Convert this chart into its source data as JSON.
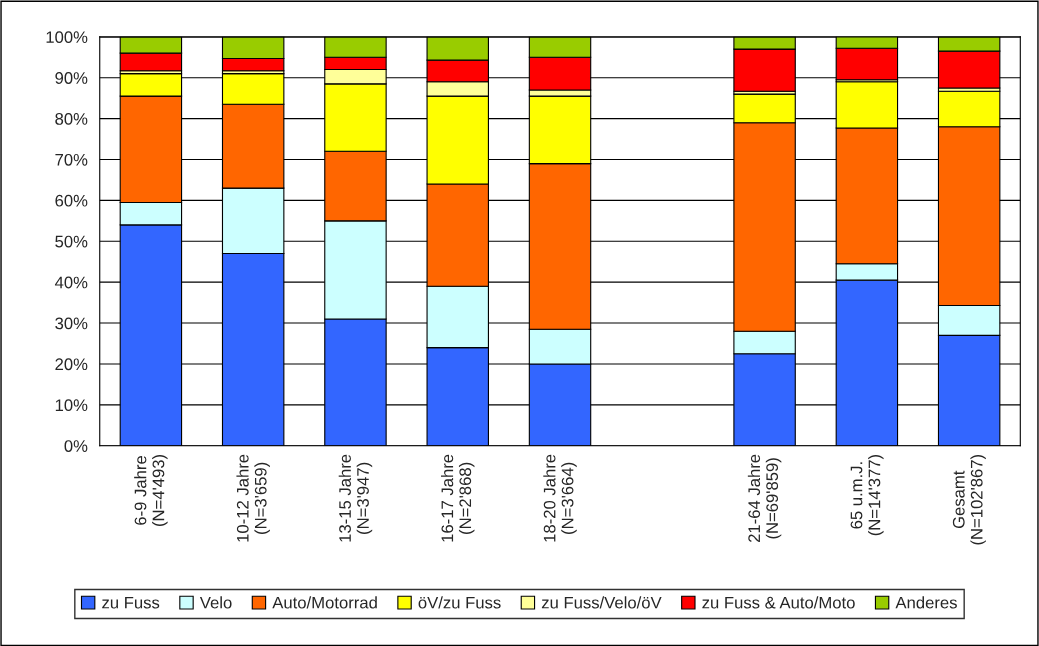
{
  "chart_data": {
    "type": "bar",
    "stacked": true,
    "categories": [
      "6-9 Jahre\n(N=4'493)",
      "10-12 Jahre\n(N=3'659)",
      "13-15 Jahre\n(N=3'947)",
      "16-17 Jahre\n(N=2'868)",
      "18-20 Jahre\n(N=3'664)",
      null,
      "21-64 Jahre\n(N=69'859)",
      "65 u.m.J.\n(N=14'377)",
      "Gesamt\n(N=102'867)"
    ],
    "series": [
      {
        "name": "zu Fuss",
        "color": "#3366ff",
        "values": [
          54,
          47,
          31,
          24,
          20,
          null,
          22.5,
          40.5,
          27
        ]
      },
      {
        "name": "Velo",
        "color": "#ccffff",
        "values": [
          5.5,
          16,
          24,
          15,
          8.5,
          null,
          5.5,
          4,
          7.3
        ]
      },
      {
        "name": "Auto/Motorrad",
        "color": "#ff6600",
        "values": [
          26,
          20.5,
          17,
          25,
          40.5,
          null,
          51,
          33.2,
          43.7
        ]
      },
      {
        "name": "öV/zu Fuss",
        "color": "#ffff00",
        "values": [
          5.5,
          7.5,
          16.5,
          21.5,
          16.5,
          null,
          7,
          11.3,
          8.7
        ]
      },
      {
        "name": "zu Fuss/Velo/öV",
        "color": "#ffff99",
        "values": [
          0.7,
          0.7,
          3.5,
          3.5,
          1.5,
          null,
          0.7,
          0.5,
          0.8
        ]
      },
      {
        "name": "zu Fuss & Auto/Moto",
        "color": "#ff0000",
        "values": [
          4.3,
          3,
          3,
          5.3,
          8,
          null,
          10.3,
          7.7,
          9
        ]
      },
      {
        "name": "Anderes",
        "color": "#99cc00",
        "values": [
          4,
          5.3,
          5,
          5.7,
          5,
          null,
          3,
          3,
          3.5
        ]
      }
    ],
    "ylim": [
      0,
      100
    ],
    "yticks": [
      {
        "value": 0,
        "label": "0%"
      },
      {
        "value": 10,
        "label": "10%"
      },
      {
        "value": 20,
        "label": "20%"
      },
      {
        "value": 30,
        "label": "30%"
      },
      {
        "value": 40,
        "label": "40%"
      },
      {
        "value": 50,
        "label": "50%"
      },
      {
        "value": 60,
        "label": "60%"
      },
      {
        "value": 70,
        "label": "70%"
      },
      {
        "value": 80,
        "label": "80%"
      },
      {
        "value": 90,
        "label": "90%"
      },
      {
        "value": 100,
        "label": "100%"
      }
    ],
    "grid": "y",
    "legend": "bottom"
  }
}
